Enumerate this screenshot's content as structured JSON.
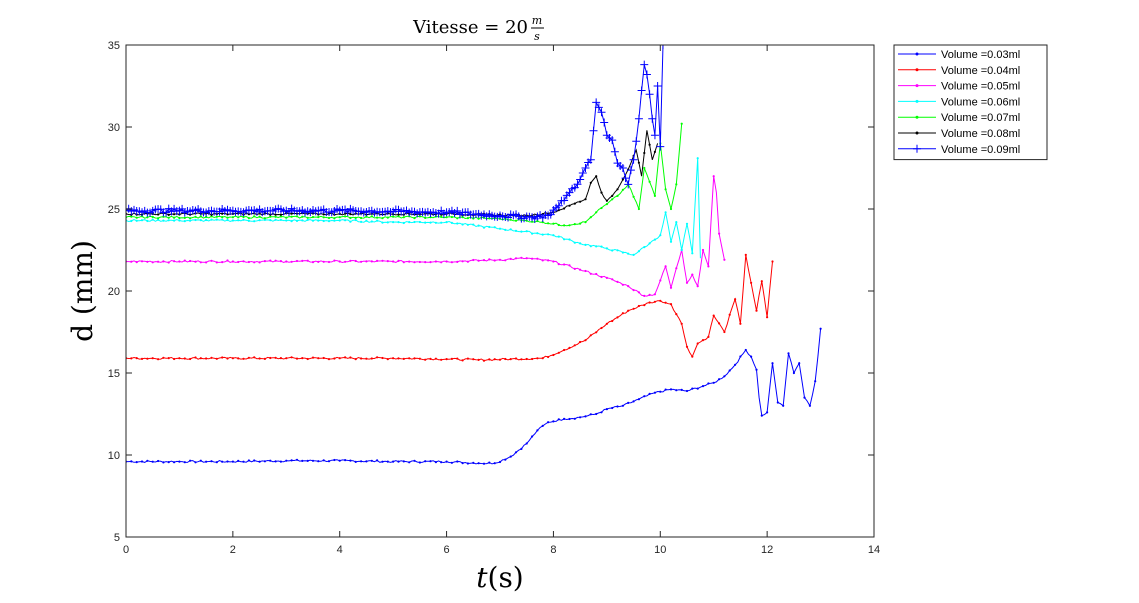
{
  "chart_data": {
    "type": "line",
    "title": "Vitesse = 20",
    "title_fraction": {
      "numerator": "m",
      "denominator": "s"
    },
    "xlabel_var": "t",
    "xlabel_unit": "(s)",
    "ylabel": "d (mm)",
    "xlim": [
      0,
      14
    ],
    "ylim": [
      5,
      35
    ],
    "xticks": [
      0,
      2,
      4,
      6,
      8,
      10,
      12,
      14
    ],
    "yticks": [
      5,
      10,
      15,
      20,
      25,
      30,
      35
    ],
    "grid": false,
    "legend_position": "outside-top-right",
    "series": [
      {
        "name": "Volume =0.03ml",
        "color": "#0000ff",
        "marker": "dot",
        "points": [
          [
            0,
            9.6
          ],
          [
            1,
            9.6
          ],
          [
            2,
            9.6
          ],
          [
            3,
            9.65
          ],
          [
            4,
            9.65
          ],
          [
            5,
            9.6
          ],
          [
            6,
            9.6
          ],
          [
            6.6,
            9.5
          ],
          [
            6.9,
            9.5
          ],
          [
            7.2,
            9.9
          ],
          [
            7.5,
            10.7
          ],
          [
            7.7,
            11.5
          ],
          [
            7.9,
            12.0
          ],
          [
            8.2,
            12.2
          ],
          [
            8.5,
            12.3
          ],
          [
            8.8,
            12.5
          ],
          [
            9.0,
            12.8
          ],
          [
            9.3,
            13.0
          ],
          [
            9.6,
            13.4
          ],
          [
            9.9,
            13.8
          ],
          [
            10.2,
            14.0
          ],
          [
            10.5,
            13.9
          ],
          [
            10.8,
            14.2
          ],
          [
            11.0,
            14.4
          ],
          [
            11.2,
            14.8
          ],
          [
            11.4,
            15.5
          ],
          [
            11.6,
            16.4
          ],
          [
            11.7,
            16.0
          ],
          [
            11.8,
            15.2
          ],
          [
            11.85,
            13.5
          ],
          [
            11.9,
            12.4
          ],
          [
            12.0,
            12.6
          ],
          [
            12.1,
            15.6
          ],
          [
            12.2,
            13.2
          ],
          [
            12.3,
            13.0
          ],
          [
            12.4,
            16.2
          ],
          [
            12.5,
            15.0
          ],
          [
            12.6,
            15.6
          ],
          [
            12.7,
            13.5
          ],
          [
            12.8,
            13.0
          ],
          [
            12.9,
            14.5
          ],
          [
            12.95,
            16.0
          ],
          [
            13.0,
            17.7
          ]
        ]
      },
      {
        "name": "Volume =0.04ml",
        "color": "#ff0000",
        "marker": "dot",
        "points": [
          [
            0,
            15.9
          ],
          [
            1,
            15.9
          ],
          [
            2,
            15.9
          ],
          [
            3,
            15.9
          ],
          [
            4,
            15.9
          ],
          [
            5,
            15.9
          ],
          [
            6,
            15.85
          ],
          [
            6.6,
            15.8
          ],
          [
            7.2,
            15.85
          ],
          [
            7.8,
            15.9
          ],
          [
            8.2,
            16.4
          ],
          [
            8.6,
            17.0
          ],
          [
            9.0,
            18.0
          ],
          [
            9.4,
            18.8
          ],
          [
            9.8,
            19.3
          ],
          [
            10.0,
            19.4
          ],
          [
            10.2,
            19.2
          ],
          [
            10.4,
            18.0
          ],
          [
            10.5,
            16.6
          ],
          [
            10.6,
            16.0
          ],
          [
            10.7,
            16.8
          ],
          [
            10.9,
            17.2
          ],
          [
            11.0,
            18.5
          ],
          [
            11.2,
            17.5
          ],
          [
            11.4,
            19.5
          ],
          [
            11.5,
            18.0
          ],
          [
            11.6,
            22.2
          ],
          [
            11.7,
            20.5
          ],
          [
            11.8,
            18.8
          ],
          [
            11.9,
            20.6
          ],
          [
            12.0,
            18.4
          ],
          [
            12.1,
            21.8
          ]
        ]
      },
      {
        "name": "Volume =0.05ml",
        "color": "#ff00ff",
        "marker": "dot",
        "points": [
          [
            0,
            21.8
          ],
          [
            1,
            21.8
          ],
          [
            2,
            21.8
          ],
          [
            3,
            21.8
          ],
          [
            4,
            21.8
          ],
          [
            5,
            21.8
          ],
          [
            6,
            21.8
          ],
          [
            7.0,
            21.9
          ],
          [
            7.5,
            22.0
          ],
          [
            8.0,
            21.8
          ],
          [
            8.5,
            21.3
          ],
          [
            9.0,
            20.8
          ],
          [
            9.4,
            20.3
          ],
          [
            9.7,
            19.7
          ],
          [
            9.9,
            19.8
          ],
          [
            10.1,
            21.5
          ],
          [
            10.2,
            20.2
          ],
          [
            10.4,
            22.5
          ],
          [
            10.5,
            20.5
          ],
          [
            10.6,
            21.0
          ],
          [
            10.7,
            20.3
          ],
          [
            10.8,
            22.5
          ],
          [
            10.9,
            21.5
          ],
          [
            11.0,
            27.0
          ],
          [
            11.05,
            26.0
          ],
          [
            11.1,
            23.5
          ],
          [
            11.2,
            21.9
          ]
        ]
      },
      {
        "name": "Volume =0.06ml",
        "color": "#00ffff",
        "marker": "dot",
        "points": [
          [
            0,
            24.3
          ],
          [
            1,
            24.3
          ],
          [
            2,
            24.3
          ],
          [
            3,
            24.3
          ],
          [
            4,
            24.3
          ],
          [
            5,
            24.2
          ],
          [
            6,
            24.2
          ],
          [
            7.0,
            23.8
          ],
          [
            8.0,
            23.4
          ],
          [
            8.5,
            22.9
          ],
          [
            9.0,
            22.6
          ],
          [
            9.5,
            22.2
          ],
          [
            9.8,
            22.9
          ],
          [
            10.0,
            23.4
          ],
          [
            10.1,
            24.8
          ],
          [
            10.2,
            23.0
          ],
          [
            10.3,
            24.2
          ],
          [
            10.4,
            22.5
          ],
          [
            10.5,
            24.1
          ],
          [
            10.6,
            22.3
          ],
          [
            10.7,
            28.1
          ],
          [
            10.75,
            22.0
          ]
        ]
      },
      {
        "name": "Volume =0.07ml",
        "color": "#00ff00",
        "marker": "dot",
        "points": [
          [
            0,
            24.5
          ],
          [
            2,
            24.5
          ],
          [
            4,
            24.5
          ],
          [
            6,
            24.5
          ],
          [
            7.0,
            24.4
          ],
          [
            7.8,
            24.2
          ],
          [
            8.2,
            24.0
          ],
          [
            8.6,
            24.2
          ],
          [
            8.8,
            24.8
          ],
          [
            9.0,
            25.3
          ],
          [
            9.2,
            25.8
          ],
          [
            9.4,
            26.5
          ],
          [
            9.6,
            25.0
          ],
          [
            9.7,
            27.5
          ],
          [
            9.9,
            25.8
          ],
          [
            10.0,
            29.0
          ],
          [
            10.1,
            26.2
          ],
          [
            10.2,
            25.0
          ],
          [
            10.3,
            26.5
          ],
          [
            10.4,
            30.2
          ]
        ]
      },
      {
        "name": "Volume =0.08ml",
        "color": "#000000",
        "marker": "dot",
        "points": [
          [
            0,
            24.7
          ],
          [
            2,
            24.7
          ],
          [
            4,
            24.7
          ],
          [
            6,
            24.7
          ],
          [
            7.5,
            24.6
          ],
          [
            8.0,
            24.8
          ],
          [
            8.3,
            25.2
          ],
          [
            8.6,
            25.6
          ],
          [
            8.7,
            26.6
          ],
          [
            8.8,
            27.0
          ],
          [
            8.9,
            26.0
          ],
          [
            9.0,
            25.5
          ],
          [
            9.1,
            25.8
          ],
          [
            9.2,
            26.2
          ],
          [
            9.3,
            26.8
          ],
          [
            9.45,
            27.8
          ],
          [
            9.55,
            28.6
          ],
          [
            9.65,
            27.0
          ],
          [
            9.75,
            29.8
          ],
          [
            9.85,
            28.0
          ],
          [
            9.95,
            29.0
          ]
        ]
      },
      {
        "name": "Volume =0.09ml",
        "color": "#0000ff",
        "marker": "plus",
        "points": [
          [
            0,
            24.9
          ],
          [
            1,
            24.9
          ],
          [
            2,
            24.9
          ],
          [
            3,
            24.9
          ],
          [
            4,
            24.9
          ],
          [
            5,
            24.85
          ],
          [
            6,
            24.8
          ],
          [
            7.0,
            24.6
          ],
          [
            7.6,
            24.5
          ],
          [
            7.9,
            24.6
          ],
          [
            8.1,
            25.2
          ],
          [
            8.3,
            26.0
          ],
          [
            8.5,
            26.8
          ],
          [
            8.6,
            27.5
          ],
          [
            8.7,
            28.0
          ],
          [
            8.8,
            31.5
          ],
          [
            8.9,
            30.9
          ],
          [
            9.0,
            29.5
          ],
          [
            9.1,
            29.2
          ],
          [
            9.2,
            27.8
          ],
          [
            9.3,
            27.5
          ],
          [
            9.4,
            26.5
          ],
          [
            9.5,
            28.0
          ],
          [
            9.6,
            30.5
          ],
          [
            9.7,
            33.8
          ],
          [
            9.75,
            33.2
          ],
          [
            9.8,
            32.0
          ],
          [
            9.85,
            30.5
          ],
          [
            9.9,
            29.5
          ],
          [
            9.95,
            32.5
          ],
          [
            10.0,
            28.8
          ],
          [
            10.05,
            35.0
          ]
        ]
      }
    ]
  }
}
